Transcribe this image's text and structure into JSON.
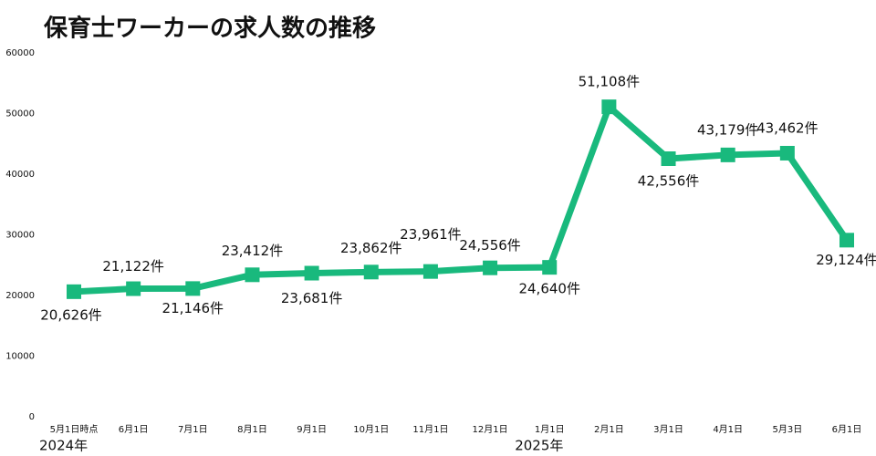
{
  "chart_data": {
    "type": "line",
    "title": "保育士ワーカーの求人数の推移",
    "categories": [
      "5月1日時点",
      "6月1日",
      "7月1日",
      "8月1日",
      "9月1日",
      "10月1日",
      "11月1日",
      "12月1日",
      "1月1日",
      "2月1日",
      "3月1日",
      "4月1日",
      "5月3日",
      "6月1日"
    ],
    "series": [
      {
        "name": "求人数",
        "color": "#19b97d",
        "values": [
          20626,
          21122,
          21146,
          23412,
          23681,
          23862,
          23961,
          24556,
          24640,
          51108,
          42556,
          43179,
          43462,
          29124
        ],
        "value_labels": [
          "20,626件",
          "21,122件",
          "21,146件",
          "23,412件",
          "23,681件",
          "23,862件",
          "23,961件",
          "24,556件",
          "24,640件",
          "51,108件",
          "42,556件",
          "43,179件",
          "43,462件",
          "29,124件"
        ]
      }
    ],
    "year_labels": [
      "2024年",
      "2025年"
    ],
    "ylim": [
      0,
      60000
    ],
    "yticks": [
      0,
      10000,
      20000,
      30000,
      40000,
      50000,
      60000
    ],
    "grid": false
  }
}
